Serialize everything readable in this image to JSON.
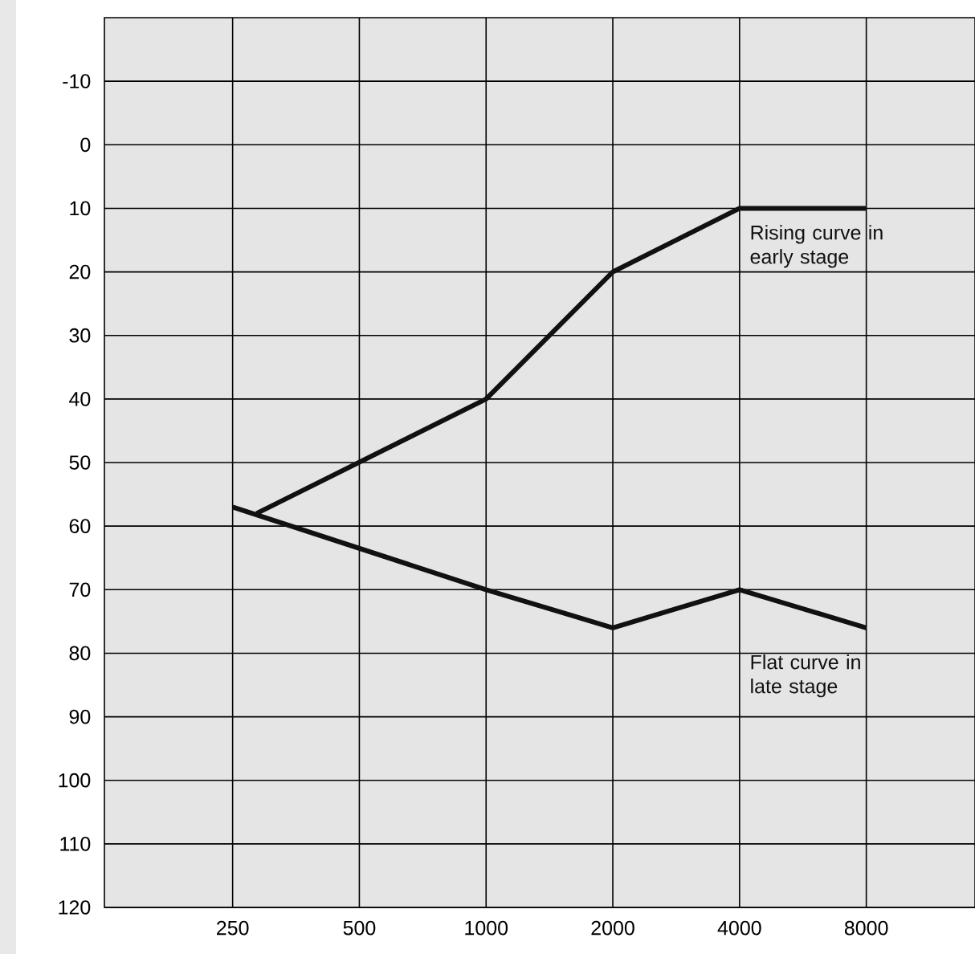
{
  "chart_data": {
    "type": "line",
    "log": "x",
    "grid": true,
    "legend": false,
    "marker": "none",
    "line_style": "solid",
    "xlim": [
      124,
      14500
    ],
    "ylim": [
      120,
      -20
    ],
    "xticks": [
      250,
      500,
      1000,
      2000,
      4000,
      8000
    ],
    "yticks": [
      -10,
      0,
      10,
      20,
      30,
      40,
      50,
      60,
      70,
      80,
      90,
      100,
      110,
      120
    ],
    "series": [
      {
        "name": "Rising curve in early stage",
        "color": "#111111",
        "x": [
          285,
          1000,
          2000,
          4000,
          8000
        ],
        "values": [
          58,
          40,
          20,
          10,
          10
        ]
      },
      {
        "name": "Flat curve in late stage",
        "color": "#111111",
        "x": [
          250,
          1000,
          2000,
          4000,
          8000
        ],
        "values": [
          57,
          70,
          76,
          70,
          76
        ]
      }
    ]
  }
}
